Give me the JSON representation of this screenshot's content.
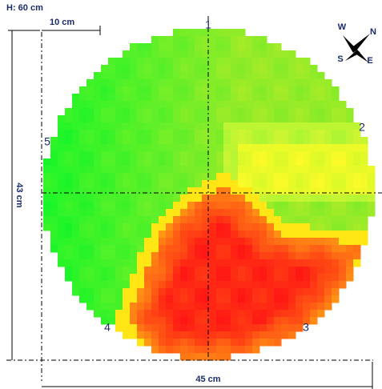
{
  "header": {
    "height": "H: 60 cm",
    "scale": "10 cm"
  },
  "dimensions": {
    "vertical": "43 cm",
    "horizontal": "45 cm"
  },
  "points": [
    "1",
    "2",
    "3",
    "4",
    "5"
  ],
  "compass": {
    "west": "W",
    "north": "N",
    "south": "S",
    "east": "E"
  }
}
